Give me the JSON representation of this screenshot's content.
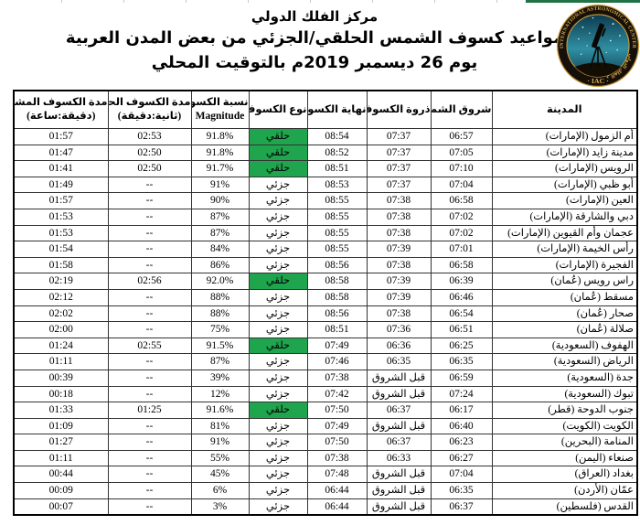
{
  "page": {
    "title_line1": "مركز الفلك الدولي",
    "title_line2": "مواعيد كسوف الشمس الحلقي/الجزئي من بعض المدن العربية",
    "title_line3": "يوم 26 ديسمبر 2019م بالتوقيت المحلي"
  },
  "logo": {
    "ring_text": "INTERNATIONAL ASTRONOMICAL CENTER",
    "ring_text_ar": "مركز الفلك الدولي",
    "acronym_display": "· IAC ·"
  },
  "colors": {
    "annular_green": "#1ea54e",
    "top_strip_green": "#217346",
    "logo_gold": "#d6a947",
    "logo_ring_dark": "#17100a"
  },
  "table": {
    "headers": [
      {
        "key": "city",
        "lines": [
          "المدينة"
        ]
      },
      {
        "key": "sunrise",
        "lines": [
          "شروق الشمس"
        ]
      },
      {
        "key": "peak",
        "lines": [
          "ذروة الكسوف"
        ]
      },
      {
        "key": "end",
        "lines": [
          "نهاية الكسوف"
        ]
      },
      {
        "key": "type",
        "lines": [
          "نوع الكسوف"
        ]
      },
      {
        "key": "magnitude",
        "lines": [
          "نسبة الكسوف",
          "Magnitude"
        ]
      },
      {
        "key": "annular",
        "lines": [
          "مدة الكسوف الحلقي",
          "(ثانية:دقيقة)"
        ]
      },
      {
        "key": "observed",
        "lines": [
          "مدة الكسوف المشاهد",
          "(دقيقة:ساعة)"
        ]
      }
    ],
    "rows": [
      {
        "city": "أم الزمول (الإمارات)",
        "sunrise": "06:57",
        "peak": "07:37",
        "end": "08:54",
        "type": "حلقي",
        "is_annular": true,
        "magnitude": "91.8%",
        "annular": "02:53",
        "observed": "01:57"
      },
      {
        "city": "مدينة زايد (الإمارات)",
        "sunrise": "07:05",
        "peak": "07:37",
        "end": "08:52",
        "type": "حلقي",
        "is_annular": true,
        "magnitude": "91.8%",
        "annular": "02:50",
        "observed": "01:47"
      },
      {
        "city": "الرويس (الإمارات)",
        "sunrise": "07:10",
        "peak": "07:37",
        "end": "08:51",
        "type": "حلقي",
        "is_annular": true,
        "magnitude": "91.7%",
        "annular": "02:50",
        "observed": "01:41"
      },
      {
        "city": "أبو ظبي (الإمارات)",
        "sunrise": "07:04",
        "peak": "07:37",
        "end": "08:53",
        "type": "جزئي",
        "is_annular": false,
        "magnitude": "91%",
        "annular": "--",
        "observed": "01:49"
      },
      {
        "city": "العين (الإمارات)",
        "sunrise": "06:58",
        "peak": "07:38",
        "end": "08:55",
        "type": "جزئي",
        "is_annular": false,
        "magnitude": "90%",
        "annular": "--",
        "observed": "01:57"
      },
      {
        "city": "دبي والشارقة (الإمارات)",
        "sunrise": "07:02",
        "peak": "07:38",
        "end": "08:55",
        "type": "جزئي",
        "is_annular": false,
        "magnitude": "87%",
        "annular": "--",
        "observed": "01:53"
      },
      {
        "city": "عجمان وأم القيوين (الإمارات)",
        "sunrise": "07:02",
        "peak": "07:38",
        "end": "08:55",
        "type": "جزئي",
        "is_annular": false,
        "magnitude": "87%",
        "annular": "--",
        "observed": "01:53"
      },
      {
        "city": "رأس الخيمة (الإمارات)",
        "sunrise": "07:01",
        "peak": "07:39",
        "end": "08:55",
        "type": "جزئي",
        "is_annular": false,
        "magnitude": "84%",
        "annular": "--",
        "observed": "01:54"
      },
      {
        "city": "الفجيرة (الإمارات)",
        "sunrise": "06:58",
        "peak": "07:38",
        "end": "08:56",
        "type": "جزئي",
        "is_annular": false,
        "magnitude": "86%",
        "annular": "--",
        "observed": "01:58"
      },
      {
        "city": "راس رويس (عُمان)",
        "sunrise": "06:39",
        "peak": "07:39",
        "end": "08:58",
        "type": "حلقي",
        "is_annular": true,
        "magnitude": "92.0%",
        "annular": "02:56",
        "observed": "02:19"
      },
      {
        "city": "مسقط (عُمان)",
        "sunrise": "06:46",
        "peak": "07:39",
        "end": "08:58",
        "type": "جزئي",
        "is_annular": false,
        "magnitude": "88%",
        "annular": "--",
        "observed": "02:12"
      },
      {
        "city": "صحار (عُمان)",
        "sunrise": "06:54",
        "peak": "07:38",
        "end": "08:56",
        "type": "جزئي",
        "is_annular": false,
        "magnitude": "88%",
        "annular": "--",
        "observed": "02:02"
      },
      {
        "city": "صلالة (عُمان)",
        "sunrise": "06:51",
        "peak": "07:36",
        "end": "08:51",
        "type": "جزئي",
        "is_annular": false,
        "magnitude": "75%",
        "annular": "--",
        "observed": "02:00"
      },
      {
        "city": "الهفوف (السعودية)",
        "sunrise": "06:25",
        "peak": "06:36",
        "end": "07:49",
        "type": "حلقي",
        "is_annular": true,
        "magnitude": "91.5%",
        "annular": "02:55",
        "observed": "01:24"
      },
      {
        "city": "الرياض (السعودية)",
        "sunrise": "06:35",
        "peak": "06:35",
        "end": "07:46",
        "type": "جزئي",
        "is_annular": false,
        "magnitude": "87%",
        "annular": "--",
        "observed": "01:11"
      },
      {
        "city": "جدة (السعودية)",
        "sunrise": "06:59",
        "peak": "قبل الشروق",
        "end": "07:38",
        "type": "جزئي",
        "is_annular": false,
        "magnitude": "39%",
        "annular": "--",
        "observed": "00:39"
      },
      {
        "city": "تبوك (السعودية)",
        "sunrise": "07:24",
        "peak": "قبل الشروق",
        "end": "07:42",
        "type": "جزئي",
        "is_annular": false,
        "magnitude": "12%",
        "annular": "--",
        "observed": "00:18"
      },
      {
        "city": "جنوب الدوحة (قطر)",
        "sunrise": "06:17",
        "peak": "06:37",
        "end": "07:50",
        "type": "حلقي",
        "is_annular": true,
        "magnitude": "91.6%",
        "annular": "01:25",
        "observed": "01:33"
      },
      {
        "city": "الكويت (الكويت)",
        "sunrise": "06:40",
        "peak": "قبل الشروق",
        "end": "07:49",
        "type": "جزئي",
        "is_annular": false,
        "magnitude": "81%",
        "annular": "--",
        "observed": "01:09"
      },
      {
        "city": "المنامة (البحرين)",
        "sunrise": "06:23",
        "peak": "06:37",
        "end": "07:50",
        "type": "جزئي",
        "is_annular": false,
        "magnitude": "91%",
        "annular": "--",
        "observed": "01:27"
      },
      {
        "city": "صنعاء (اليمن)",
        "sunrise": "06:27",
        "peak": "06:33",
        "end": "07:38",
        "type": "جزئي",
        "is_annular": false,
        "magnitude": "55%",
        "annular": "--",
        "observed": "01:11"
      },
      {
        "city": "بغداد (العراق)",
        "sunrise": "07:04",
        "peak": "قبل الشروق",
        "end": "07:48",
        "type": "جزئي",
        "is_annular": false,
        "magnitude": "45%",
        "annular": "--",
        "observed": "00:44"
      },
      {
        "city": "عمّان (الأردن)",
        "sunrise": "06:35",
        "peak": "قبل الشروق",
        "end": "06:44",
        "type": "جزئي",
        "is_annular": false,
        "magnitude": "6%",
        "annular": "--",
        "observed": "00:09"
      },
      {
        "city": "القدس (فلسطين)",
        "sunrise": "06:37",
        "peak": "قبل الشروق",
        "end": "06:44",
        "type": "جزئي",
        "is_annular": false,
        "magnitude": "3%",
        "annular": "--",
        "observed": "00:07"
      }
    ],
    "column_widths": {
      "city": 159,
      "sunrise": 67,
      "peak": 70,
      "end": 65,
      "type": 64,
      "magnitude": 63,
      "annular": 91,
      "observed": 103
    }
  }
}
